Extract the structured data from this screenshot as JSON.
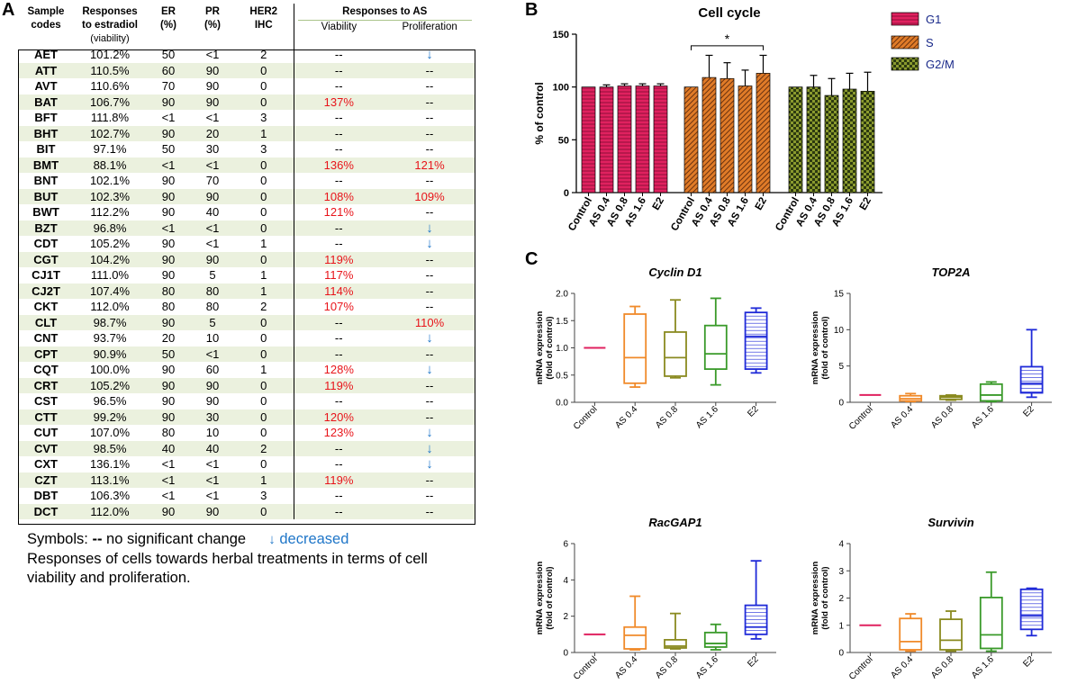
{
  "panel_labels": {
    "a": "A",
    "b": "B",
    "c": "C"
  },
  "table": {
    "headers": {
      "sample_codes": [
        "Sample",
        "codes"
      ],
      "responses_estradiol": [
        "Responses",
        "to estradiol",
        "(viability)"
      ],
      "er": [
        "ER",
        "(%)"
      ],
      "pr": [
        "PR",
        "(%)"
      ],
      "her2": [
        "HER2",
        "IHC"
      ],
      "responses_as": "Responses to AS",
      "viability": "Viability",
      "proliferation": "Proliferation"
    },
    "rows": [
      {
        "code": "AET",
        "e2": "101.2%",
        "er": "50",
        "pr": "<1",
        "her2": "2",
        "via": "--",
        "pro": "↓"
      },
      {
        "code": "ATT",
        "e2": "110.5%",
        "er": "60",
        "pr": "90",
        "her2": "0",
        "via": "--",
        "pro": "--"
      },
      {
        "code": "AVT",
        "e2": "110.6%",
        "er": "70",
        "pr": "90",
        "her2": "0",
        "via": "--",
        "pro": "--"
      },
      {
        "code": "BAT",
        "e2": "106.7%",
        "er": "90",
        "pr": "90",
        "her2": "0",
        "via": "137%",
        "pro": "--"
      },
      {
        "code": "BFT",
        "e2": "111.8%",
        "er": "<1",
        "pr": "<1",
        "her2": "3",
        "via": "--",
        "pro": "--"
      },
      {
        "code": "BHT",
        "e2": "102.7%",
        "er": "90",
        "pr": "20",
        "her2": "1",
        "via": "--",
        "pro": "--"
      },
      {
        "code": "BIT",
        "e2": "97.1%",
        "er": "50",
        "pr": "30",
        "her2": "3",
        "via": "--",
        "pro": "--"
      },
      {
        "code": "BMT",
        "e2": "88.1%",
        "er": "<1",
        "pr": "<1",
        "her2": "0",
        "via": "136%",
        "pro": "121%"
      },
      {
        "code": "BNT",
        "e2": "102.1%",
        "er": "90",
        "pr": "70",
        "her2": "0",
        "via": "--",
        "pro": "--"
      },
      {
        "code": "BUT",
        "e2": "102.3%",
        "er": "90",
        "pr": "90",
        "her2": "0",
        "via": "108%",
        "pro": "109%"
      },
      {
        "code": "BWT",
        "e2": "112.2%",
        "er": "90",
        "pr": "40",
        "her2": "0",
        "via": "121%",
        "pro": "--"
      },
      {
        "code": "BZT",
        "e2": "96.8%",
        "er": "<1",
        "pr": "<1",
        "her2": "0",
        "via": "--",
        "pro": "↓"
      },
      {
        "code": "CDT",
        "e2": "105.2%",
        "er": "90",
        "pr": "<1",
        "her2": "1",
        "via": "--",
        "pro": "↓"
      },
      {
        "code": "CGT",
        "e2": "104.2%",
        "er": "90",
        "pr": "90",
        "her2": "0",
        "via": "119%",
        "pro": "--"
      },
      {
        "code": "CJ1T",
        "e2": "111.0%",
        "er": "90",
        "pr": "5",
        "her2": "1",
        "via": "117%",
        "pro": "--"
      },
      {
        "code": "CJ2T",
        "e2": "107.4%",
        "er": "80",
        "pr": "80",
        "her2": "1",
        "via": "114%",
        "pro": "--"
      },
      {
        "code": "CKT",
        "e2": "112.0%",
        "er": "80",
        "pr": "80",
        "her2": "2",
        "via": "107%",
        "pro": "--"
      },
      {
        "code": "CLT",
        "e2": "98.7%",
        "er": "90",
        "pr": "5",
        "her2": "0",
        "via": "--",
        "pro": "110%"
      },
      {
        "code": "CNT",
        "e2": "93.7%",
        "er": "20",
        "pr": "10",
        "her2": "0",
        "via": "--",
        "pro": "↓"
      },
      {
        "code": "CPT",
        "e2": "90.9%",
        "er": "50",
        "pr": "<1",
        "her2": "0",
        "via": "--",
        "pro": "--"
      },
      {
        "code": "CQT",
        "e2": "100.0%",
        "er": "90",
        "pr": "60",
        "her2": "1",
        "via": "128%",
        "pro": "↓"
      },
      {
        "code": "CRT",
        "e2": "105.2%",
        "er": "90",
        "pr": "90",
        "her2": "0",
        "via": "119%",
        "pro": "--"
      },
      {
        "code": "CST",
        "e2": "96.5%",
        "er": "90",
        "pr": "90",
        "her2": "0",
        "via": "--",
        "pro": "--"
      },
      {
        "code": "CTT",
        "e2": "99.2%",
        "er": "90",
        "pr": "30",
        "her2": "0",
        "via": "120%",
        "pro": "--"
      },
      {
        "code": "CUT",
        "e2": "107.0%",
        "er": "80",
        "pr": "10",
        "her2": "0",
        "via": "123%",
        "pro": "↓"
      },
      {
        "code": "CVT",
        "e2": "98.5%",
        "er": "40",
        "pr": "40",
        "her2": "2",
        "via": "--",
        "pro": "↓"
      },
      {
        "code": "CXT",
        "e2": "136.1%",
        "er": "<1",
        "pr": "<1",
        "her2": "0",
        "via": "--",
        "pro": "↓"
      },
      {
        "code": "CZT",
        "e2": "113.1%",
        "er": "<1",
        "pr": "<1",
        "her2": "1",
        "via": "119%",
        "pro": "--"
      },
      {
        "code": "DBT",
        "e2": "106.3%",
        "er": "<1",
        "pr": "<1",
        "her2": "3",
        "via": "--",
        "pro": "--"
      },
      {
        "code": "DCT",
        "e2": "112.0%",
        "er": "90",
        "pr": "90",
        "her2": "0",
        "via": "--",
        "pro": "--"
      }
    ]
  },
  "symbols": {
    "prefix": "Symbols:",
    "dashes": "--",
    "no_change": "no significant change",
    "arrow": "↓",
    "decreased": "decreased"
  },
  "caption": "Responses of cells towards herbal treatments in terms of cell viability and proliferation.",
  "colors": {
    "g1": "#e0215f",
    "s": "#e07b28",
    "g2m": "#8a9a2e",
    "red_text": "#e8141a",
    "arrow_blue": "#1f76c8"
  },
  "chart_data": [
    {
      "type": "bar",
      "title": "Cell cycle",
      "ylabel": "% of control",
      "ylim": [
        0,
        150
      ],
      "yticks": [
        "0",
        "50",
        "100",
        "150"
      ],
      "categories": [
        "Control",
        "AS 0.4",
        "AS 0.8",
        "AS 1.6",
        "E2"
      ],
      "series": [
        {
          "name": "G1",
          "values": [
            100,
            100,
            101,
            101,
            101
          ],
          "err": [
            0,
            2,
            2,
            2,
            2
          ]
        },
        {
          "name": "S",
          "values": [
            100,
            109,
            108,
            101,
            113
          ],
          "err": [
            0,
            21,
            15,
            15,
            17
          ]
        },
        {
          "name": "G2/M",
          "values": [
            100,
            100,
            92,
            98,
            96
          ],
          "err": [
            0,
            11,
            16,
            15,
            18
          ]
        }
      ],
      "significance": "*"
    },
    {
      "type": "box",
      "title": "Cyclin D1",
      "ylabel": [
        "mRNA expression",
        "(fold of control)"
      ],
      "ylim": [
        0,
        2.0
      ],
      "yticks": [
        "0.0",
        "0.5",
        "1.0",
        "1.5",
        "2.0"
      ],
      "categories": [
        "Control",
        "AS 0.4",
        "AS 0.8",
        "AS 1.6",
        "E2"
      ],
      "boxes": [
        {
          "min": 1,
          "q1": 1,
          "median": 1,
          "q3": 1,
          "max": 1
        },
        {
          "min": 0.28,
          "q1": 0.35,
          "median": 0.82,
          "q3": 1.62,
          "max": 1.76
        },
        {
          "min": 0.45,
          "q1": 0.48,
          "median": 0.82,
          "q3": 1.29,
          "max": 1.88
        },
        {
          "min": 0.32,
          "q1": 0.61,
          "median": 0.89,
          "q3": 1.41,
          "max": 1.91
        },
        {
          "min": 0.54,
          "q1": 0.61,
          "median": 1.21,
          "q3": 1.65,
          "max": 1.73
        }
      ]
    },
    {
      "type": "box",
      "title": "TOP2A",
      "ylabel": [
        "mRNA expression",
        "(fold of control)"
      ],
      "ylim": [
        0,
        15
      ],
      "yticks": [
        "0",
        "5",
        "10",
        "15"
      ],
      "categories": [
        "Control",
        "AS 0.4",
        "AS 0.8",
        "AS 1.6",
        "E2"
      ],
      "boxes": [
        {
          "min": 1,
          "q1": 1,
          "median": 1,
          "q3": 1,
          "max": 1
        },
        {
          "min": 0.1,
          "q1": 0.2,
          "median": 0.5,
          "q3": 0.9,
          "max": 1.2
        },
        {
          "min": 0.3,
          "q1": 0.4,
          "median": 0.7,
          "q3": 0.9,
          "max": 1.0
        },
        {
          "min": 0.1,
          "q1": 0.2,
          "median": 1.0,
          "q3": 2.5,
          "max": 2.8
        },
        {
          "min": 0.7,
          "q1": 1.3,
          "median": 2.6,
          "q3": 4.9,
          "max": 10.0
        }
      ]
    },
    {
      "type": "box",
      "title": "RacGAP1",
      "ylabel": [
        "mRNA expression",
        "(fold of control)"
      ],
      "ylim": [
        0,
        6
      ],
      "yticks": [
        "0",
        "2",
        "4",
        "6"
      ],
      "categories": [
        "Control",
        "AS 0.4",
        "AS 0.8",
        "AS 1.6",
        "E2"
      ],
      "boxes": [
        {
          "min": 1,
          "q1": 1,
          "median": 1,
          "q3": 1,
          "max": 1
        },
        {
          "min": 0.15,
          "q1": 0.2,
          "median": 0.95,
          "q3": 1.4,
          "max": 3.1
        },
        {
          "min": 0.2,
          "q1": 0.25,
          "median": 0.35,
          "q3": 0.7,
          "max": 2.15
        },
        {
          "min": 0.15,
          "q1": 0.3,
          "median": 0.5,
          "q3": 1.1,
          "max": 1.55
        },
        {
          "min": 0.75,
          "q1": 1.0,
          "median": 1.4,
          "q3": 2.6,
          "max": 5.05
        }
      ]
    },
    {
      "type": "box",
      "title": "Survivin",
      "ylabel": [
        "mRNA expression",
        "(fold of control)"
      ],
      "ylim": [
        0,
        4
      ],
      "yticks": [
        "0",
        "1",
        "2",
        "3",
        "4"
      ],
      "categories": [
        "Control",
        "AS 0.4",
        "AS 0.8",
        "AS 1.6",
        "E2"
      ],
      "boxes": [
        {
          "min": 1,
          "q1": 1,
          "median": 1,
          "q3": 1,
          "max": 1
        },
        {
          "min": 0.05,
          "q1": 0.1,
          "median": 0.4,
          "q3": 1.25,
          "max": 1.42
        },
        {
          "min": 0.05,
          "q1": 0.1,
          "median": 0.45,
          "q3": 1.22,
          "max": 1.52
        },
        {
          "min": 0.05,
          "q1": 0.15,
          "median": 0.65,
          "q3": 2.02,
          "max": 2.95
        },
        {
          "min": 0.62,
          "q1": 0.85,
          "median": 1.35,
          "q3": 2.32,
          "max": 2.36
        }
      ]
    }
  ]
}
